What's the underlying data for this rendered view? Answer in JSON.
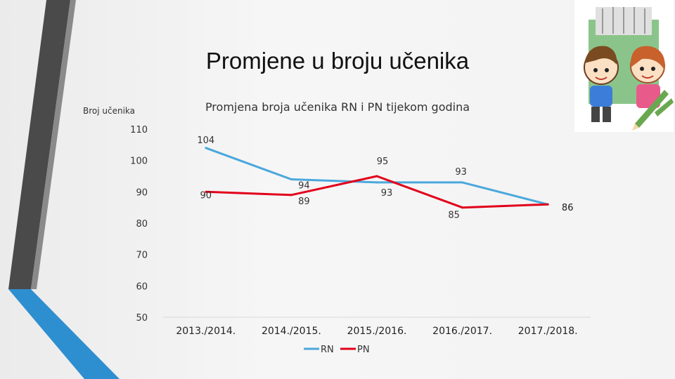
{
  "slide": {
    "title": "Promjene u broju učenika"
  },
  "colors": {
    "rn": "#4aa8dc",
    "pn": "#e2001a",
    "accent_dark": "#4a4a4a",
    "accent_blue": "#2e8fd0"
  },
  "clipart": {
    "icon": "children-with-books-and-pencils-icon"
  },
  "chart_data": {
    "type": "line",
    "title": "Promjena broja učenika RN i PN tijekom godina",
    "ylabel": "Broj učenika",
    "xlabel": "",
    "categories": [
      "2013./2014.",
      "2014./2015.",
      "2015./2016.",
      "2016./2017.",
      "2017./2018."
    ],
    "ylim": [
      50,
      110
    ],
    "yticks": [
      50,
      60,
      70,
      80,
      90,
      100,
      110
    ],
    "grid": false,
    "legend": "bottom",
    "series": [
      {
        "name": "RN",
        "values": [
          104,
          94,
          93,
          93,
          86
        ],
        "color": "#4aa8dc"
      },
      {
        "name": "PN",
        "values": [
          90,
          89,
          95,
          85,
          86
        ],
        "color": "#e2001a"
      }
    ]
  }
}
